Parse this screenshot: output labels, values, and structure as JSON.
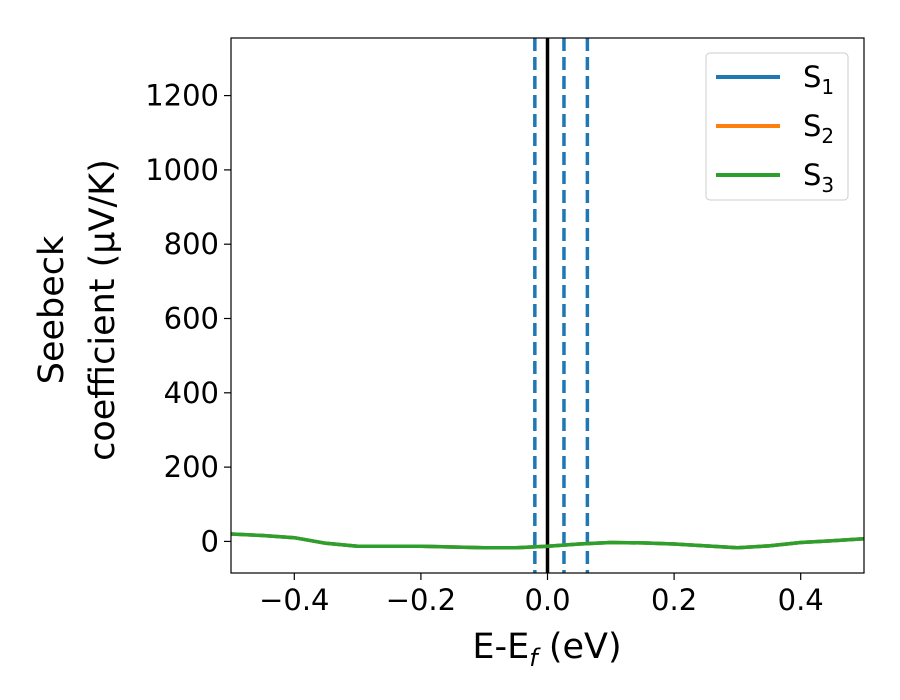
{
  "chart_data": {
    "type": "line",
    "title": "",
    "xlabel": {
      "main": "E-E",
      "sub": "f",
      "unit": " (eV)"
    },
    "ylabel": {
      "line1": "Seebeck",
      "line2": "coefficient  (μV/K)"
    },
    "xlim": [
      -0.5,
      0.5
    ],
    "ylim": [
      -85,
      1355
    ],
    "grid": false,
    "legend_position": "top-right",
    "x_ticks": [
      -0.4,
      -0.2,
      0.0,
      0.2,
      0.4
    ],
    "x_tick_labels": [
      "−0.4",
      "−0.2",
      "0.0",
      "0.2",
      "0.4"
    ],
    "y_ticks": [
      0,
      200,
      400,
      600,
      800,
      1000,
      1200
    ],
    "y_tick_labels": [
      "0",
      "200",
      "400",
      "600",
      "800",
      "1000",
      "1200"
    ],
    "x": [
      -0.5,
      -0.45,
      -0.4,
      -0.35,
      -0.3,
      -0.25,
      -0.2,
      -0.15,
      -0.1,
      -0.05,
      0.0,
      0.05,
      0.1,
      0.15,
      0.2,
      0.25,
      0.3,
      0.35,
      0.4,
      0.45,
      0.5
    ],
    "series": [
      {
        "name": "S",
        "sub": "1",
        "color": "#1f77b4",
        "values": [
          20,
          16,
          10,
          -5,
          -13,
          -13,
          -13,
          -15,
          -17,
          -17,
          -13,
          -7,
          -3,
          -4,
          -7,
          -12,
          -17,
          -12,
          -3,
          2,
          7
        ]
      },
      {
        "name": "S",
        "sub": "2",
        "color": "#ff7f0e",
        "values": [
          20,
          16,
          10,
          -5,
          -13,
          -13,
          -13,
          -15,
          -17,
          -17,
          -13,
          -7,
          -3,
          -4,
          -7,
          -12,
          -17,
          -12,
          -3,
          2,
          7
        ]
      },
      {
        "name": "S",
        "sub": "3",
        "color": "#2ca02c",
        "values": [
          20,
          16,
          10,
          -5,
          -13,
          -13,
          -13,
          -15,
          -17,
          -17,
          -13,
          -7,
          -3,
          -4,
          -7,
          -12,
          -17,
          -12,
          -3,
          2,
          7
        ]
      }
    ],
    "reference_lines": {
      "solid": {
        "x": 0.0,
        "color": "#000000"
      },
      "dashed": {
        "x": [
          -0.02,
          0.026,
          0.063
        ],
        "color": "#1f77b4"
      }
    }
  }
}
